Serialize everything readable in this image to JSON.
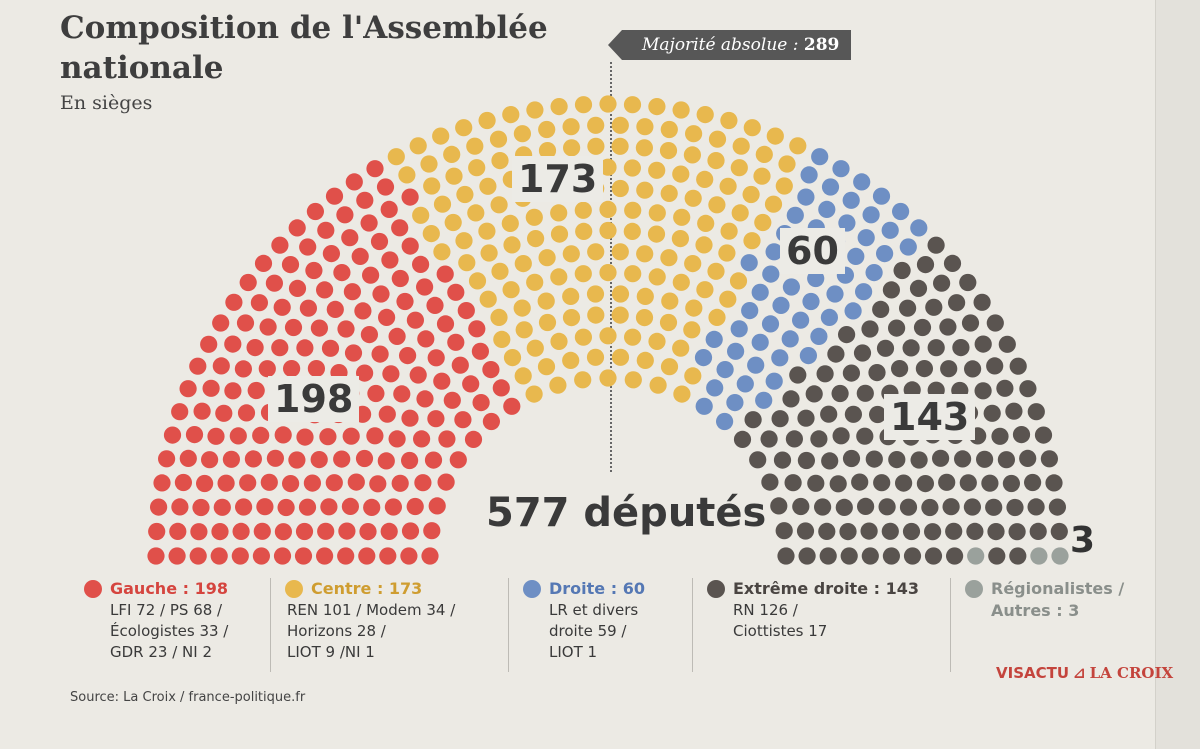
{
  "title": "Composition de l'Assemblée nationale",
  "subtitle": "En sièges",
  "majority": {
    "label": "Majorité absolue :",
    "value": "289"
  },
  "total_label": "577 députés",
  "source": "Source: La Croix / france-politique.fr",
  "brand": {
    "part1": "VISACTU",
    "part2": "LA CROIX"
  },
  "chart_data": {
    "type": "hemicycle",
    "total": 577,
    "majority": 289,
    "groups": [
      {
        "name": "Gauche",
        "seats": 198,
        "color": "#e0504a",
        "label": "198"
      },
      {
        "name": "Centre",
        "seats": 173,
        "color": "#e8b84e",
        "label": "173"
      },
      {
        "name": "Droite",
        "seats": 60,
        "color": "#6e8fc4",
        "label": "60"
      },
      {
        "name": "Extrême droite",
        "seats": 143,
        "color": "#5a5450",
        "label": "143"
      },
      {
        "name": "Régionalistes / Autres",
        "seats": 3,
        "color": "#9aa19c",
        "label": "3"
      }
    ]
  },
  "legend": [
    {
      "head": "Gauche : 198",
      "color": "#e0504a",
      "lines": [
        "LFI 72 /  PS 68 /",
        "Écologistes 33 /",
        "GDR 23 / NI 2"
      ]
    },
    {
      "head": "Centre : 173",
      "color": "#e8b84e",
      "lines": [
        "REN 101 / Modem 34 /",
        "Horizons 28  /",
        "LIOT 9 /NI 1"
      ]
    },
    {
      "head": "Droite : 60",
      "color": "#6e8fc4",
      "lines": [
        "LR et divers",
        "droite 59 /",
        "LIOT 1"
      ]
    },
    {
      "head": "Extrême droite : 143",
      "color": "#5a5450",
      "lines": [
        "RN 126 /",
        "Ciottistes 17"
      ]
    },
    {
      "head": "Régionalistes /",
      "color": "#9aa19c",
      "lines": [
        "Autres : 3"
      ]
    }
  ]
}
